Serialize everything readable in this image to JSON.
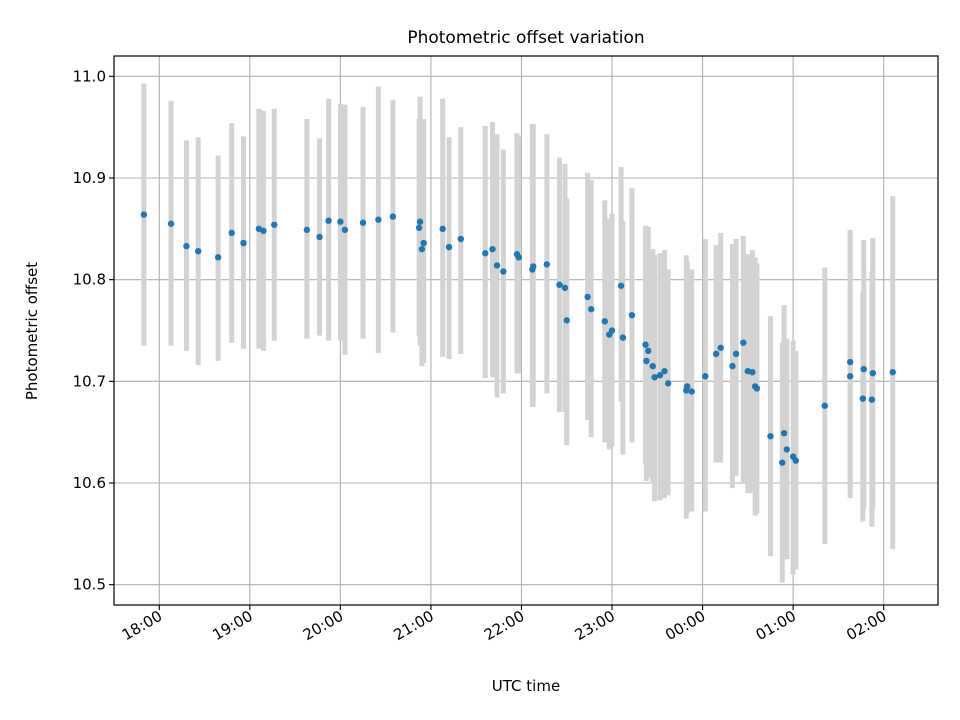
{
  "chart_data": {
    "type": "scatter",
    "title": "Photometric offset variation",
    "xlabel": "UTC time",
    "ylabel": "Photometric offset",
    "grid": true,
    "xlim_hours": [
      17.5,
      26.6
    ],
    "ylim": [
      10.48,
      11.02
    ],
    "x_ticks": [
      {
        "value": 18,
        "label": "18:00"
      },
      {
        "value": 19,
        "label": "19:00"
      },
      {
        "value": 20,
        "label": "20:00"
      },
      {
        "value": 21,
        "label": "21:00"
      },
      {
        "value": 22,
        "label": "22:00"
      },
      {
        "value": 23,
        "label": "23:00"
      },
      {
        "value": 24,
        "label": "00:00"
      },
      {
        "value": 25,
        "label": "01:00"
      },
      {
        "value": 26,
        "label": "02:00"
      }
    ],
    "y_ticks": [
      {
        "value": 10.5,
        "label": "10.5"
      },
      {
        "value": 10.6,
        "label": "10.6"
      },
      {
        "value": 10.7,
        "label": "10.7"
      },
      {
        "value": 10.8,
        "label": "10.8"
      },
      {
        "value": 10.9,
        "label": "10.9"
      },
      {
        "value": 11.0,
        "label": "11.0"
      }
    ],
    "colors": {
      "point": "#1f77b4",
      "errorbar": "#d3d3d3"
    },
    "series": [
      {
        "x_hours": [
          17.83,
          18.13,
          18.3,
          18.43,
          18.65,
          18.8,
          18.93,
          19.1,
          19.15,
          19.27,
          19.63,
          19.77,
          19.87,
          20.0,
          20.05,
          20.25,
          20.42,
          20.58,
          20.87,
          20.88,
          20.9,
          20.92,
          21.13,
          21.2,
          21.33,
          21.6,
          21.68,
          21.73,
          21.8,
          21.95,
          21.97,
          22.12,
          22.13,
          22.28,
          22.42,
          22.48,
          22.5,
          22.73,
          22.77,
          22.92,
          22.97,
          23.0,
          23.1,
          23.12,
          23.22,
          23.37,
          23.38,
          23.4,
          23.45,
          23.47,
          23.53,
          23.58,
          23.62,
          23.82,
          23.83,
          23.88,
          24.03,
          24.15,
          24.2,
          24.33,
          24.37,
          24.45,
          24.5,
          24.55,
          24.58,
          24.6,
          24.75,
          24.88,
          24.9,
          24.93,
          25.0,
          25.03,
          25.35,
          25.63,
          25.63,
          25.77,
          25.78,
          25.87,
          25.88,
          26.1
        ],
        "y": [
          10.864,
          10.855,
          10.833,
          10.828,
          10.822,
          10.846,
          10.836,
          10.85,
          10.848,
          10.854,
          10.849,
          10.842,
          10.858,
          10.857,
          10.849,
          10.856,
          10.859,
          10.862,
          10.851,
          10.857,
          10.83,
          10.836,
          10.85,
          10.832,
          10.84,
          10.826,
          10.83,
          10.814,
          10.808,
          10.825,
          10.822,
          10.81,
          10.813,
          10.815,
          10.795,
          10.792,
          10.76,
          10.783,
          10.771,
          10.759,
          10.746,
          10.75,
          10.794,
          10.743,
          10.765,
          10.736,
          10.72,
          10.73,
          10.715,
          10.704,
          10.706,
          10.71,
          10.698,
          10.691,
          10.695,
          10.69,
          10.705,
          10.727,
          10.733,
          10.715,
          10.727,
          10.738,
          10.71,
          10.709,
          10.695,
          10.693,
          10.646,
          10.62,
          10.649,
          10.633,
          10.626,
          10.622,
          10.676,
          10.719,
          10.705,
          10.683,
          10.712,
          10.682,
          10.708,
          10.709
        ],
        "err_lo": [
          10.735,
          10.735,
          10.73,
          10.716,
          10.72,
          10.738,
          10.732,
          10.732,
          10.73,
          10.74,
          10.742,
          10.745,
          10.74,
          10.74,
          10.726,
          10.742,
          10.728,
          10.748,
          10.745,
          10.735,
          10.715,
          10.718,
          10.724,
          10.722,
          10.727,
          10.703,
          10.704,
          10.684,
          10.688,
          10.708,
          10.708,
          10.675,
          10.675,
          10.688,
          10.67,
          10.67,
          10.637,
          10.662,
          10.645,
          10.64,
          10.633,
          10.636,
          10.68,
          10.628,
          10.64,
          10.618,
          10.602,
          10.605,
          10.6,
          10.582,
          10.583,
          10.585,
          10.588,
          10.565,
          10.57,
          10.572,
          10.572,
          10.62,
          10.62,
          10.595,
          10.607,
          10.6,
          10.59,
          10.59,
          10.568,
          10.57,
          10.528,
          10.502,
          10.525,
          10.525,
          10.51,
          10.515,
          10.54,
          10.585,
          10.59,
          10.562,
          10.575,
          10.557,
          10.575,
          10.535
        ],
        "err_hi": [
          10.993,
          10.976,
          10.937,
          10.94,
          10.922,
          10.954,
          10.941,
          10.968,
          10.966,
          10.968,
          10.958,
          10.939,
          10.978,
          10.973,
          10.972,
          10.97,
          10.99,
          10.977,
          10.958,
          10.98,
          10.958,
          10.958,
          10.978,
          10.94,
          10.95,
          10.951,
          10.955,
          10.943,
          10.928,
          10.944,
          10.941,
          10.953,
          10.953,
          10.943,
          10.92,
          10.914,
          10.88,
          10.905,
          10.898,
          10.878,
          10.86,
          10.865,
          10.911,
          10.858,
          10.89,
          10.853,
          10.838,
          10.852,
          10.83,
          10.824,
          10.826,
          10.829,
          10.81,
          10.824,
          10.818,
          10.81,
          10.84,
          10.834,
          10.846,
          10.835,
          10.84,
          10.843,
          10.825,
          10.829,
          10.822,
          10.816,
          10.764,
          10.738,
          10.775,
          10.742,
          10.74,
          10.73,
          10.812,
          10.849,
          10.849,
          10.788,
          10.839,
          10.808,
          10.841,
          10.882
        ]
      }
    ]
  }
}
